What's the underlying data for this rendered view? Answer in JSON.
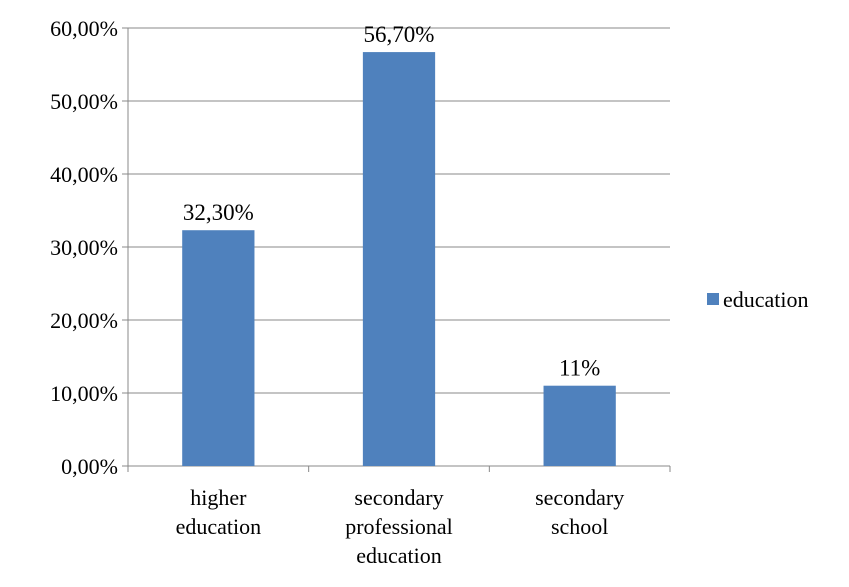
{
  "chart_data": {
    "type": "bar",
    "categories": [
      [
        "higher",
        "education"
      ],
      [
        "secondary",
        "professional",
        "education"
      ],
      [
        "secondary",
        "school"
      ]
    ],
    "series": [
      {
        "name": "education",
        "values": [
          32.3,
          56.7,
          11
        ],
        "value_labels": [
          "32,30%",
          "56,70%",
          "11%"
        ],
        "color": "#4f81bd"
      }
    ],
    "y_ticks": [
      "0,00%",
      "10,00%",
      "20,00%",
      "30,00%",
      "40,00%",
      "50,00%",
      "60,00%"
    ],
    "ylim": [
      0,
      60
    ],
    "grid": true,
    "gridline_color": "#888888",
    "legend_position": "right"
  }
}
